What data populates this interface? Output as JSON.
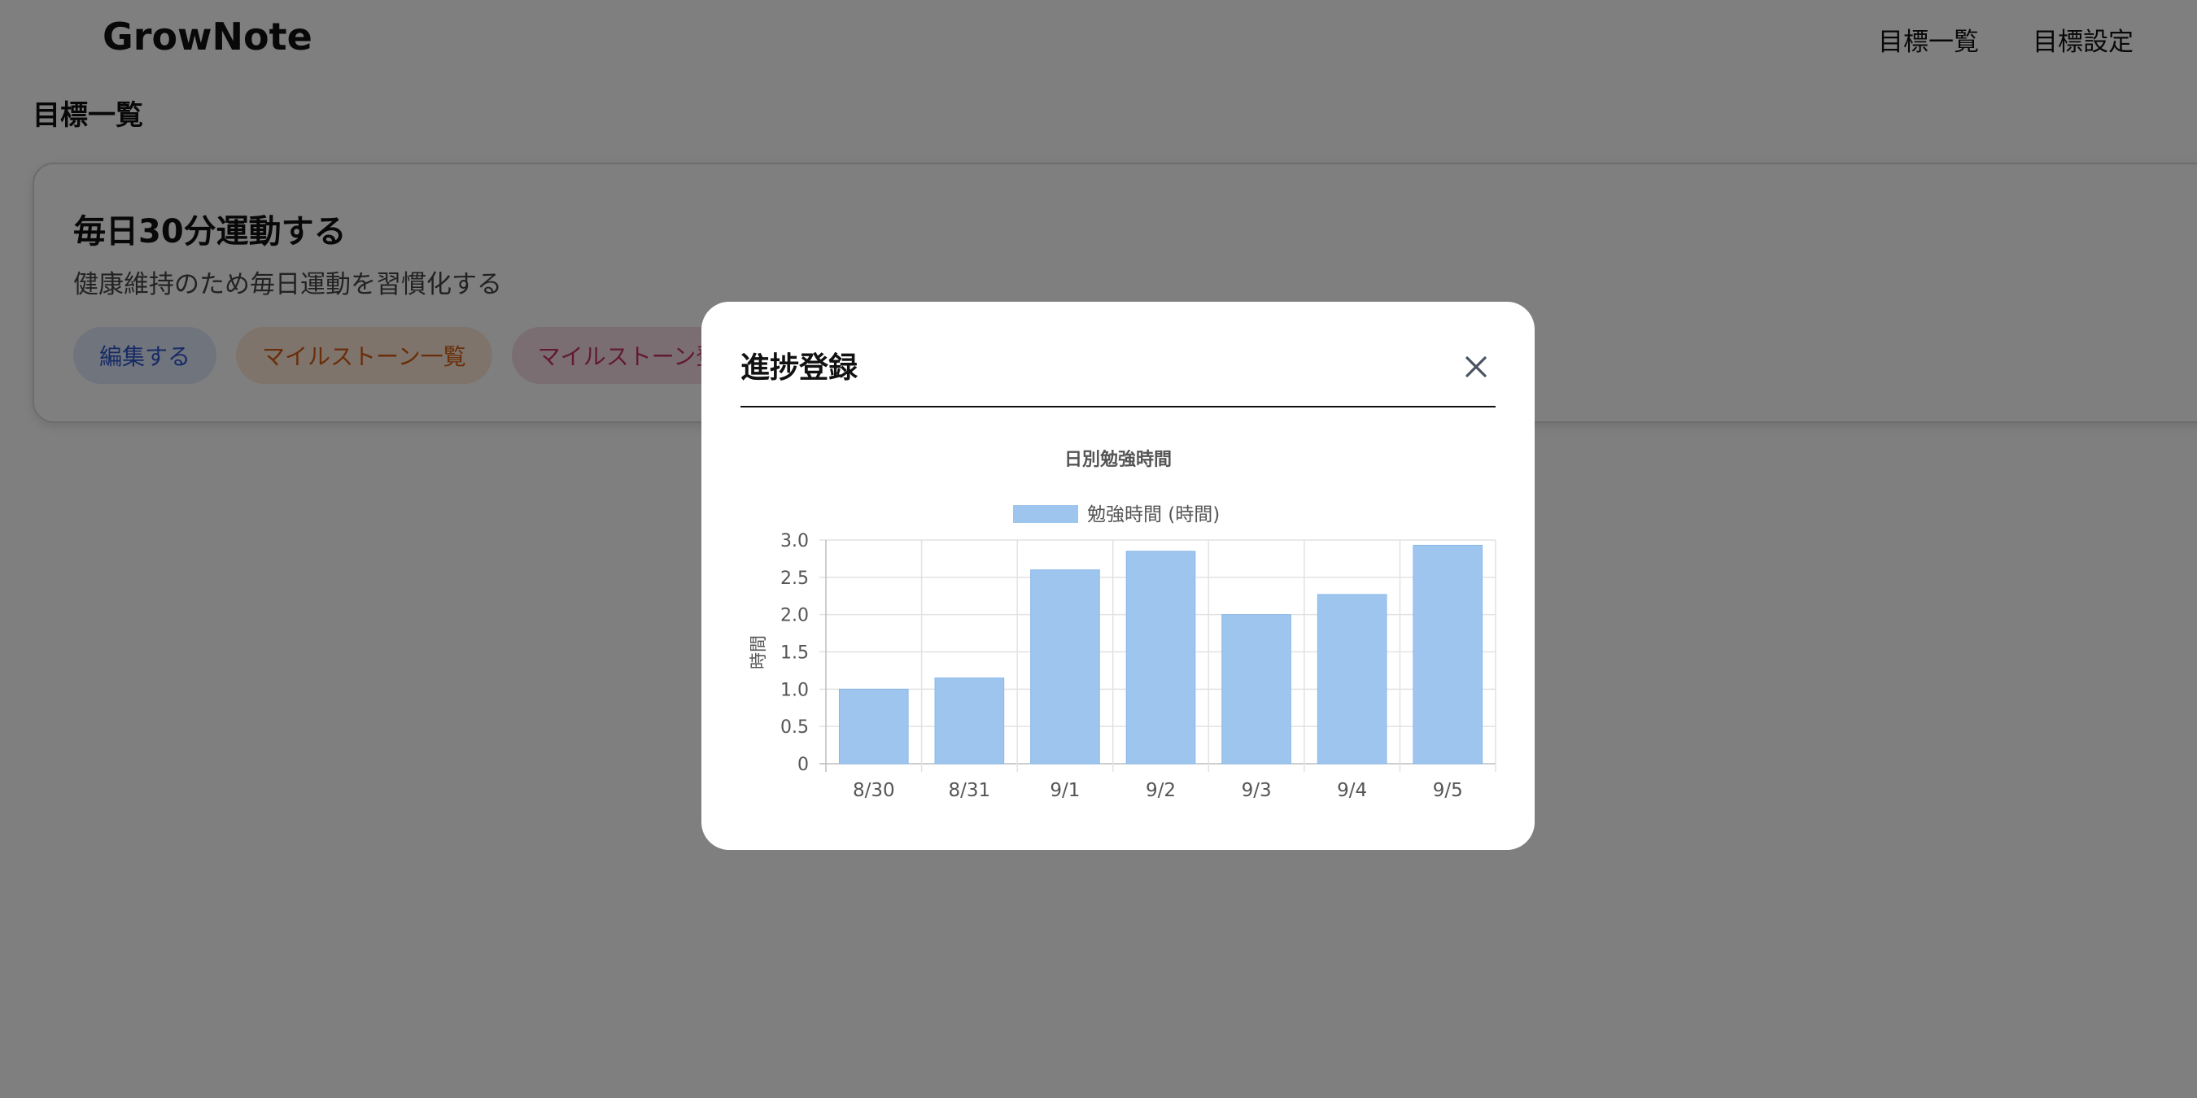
{
  "header": {
    "brand": "GrowNote",
    "nav": [
      "目標一覧",
      "目標設定"
    ]
  },
  "page": {
    "title": "目標一覧"
  },
  "goal_card": {
    "title": "毎日30分運動する",
    "description": "健康維持のため毎日運動を習慣化する",
    "actions": {
      "edit": "編集する",
      "milestone_list": "マイルストーン一覧",
      "milestone_register": "マイルストーン登"
    }
  },
  "modal": {
    "title": "進捗登録",
    "close_icon": "close-icon"
  },
  "colors": {
    "bar": "#9ec5ee",
    "edit_text": "#2f55c8",
    "milestone_list_text": "#d45a12",
    "milestone_register_text": "#c43566"
  },
  "chart_data": {
    "type": "bar",
    "title": "日別勉強時間",
    "categories": [
      "8/30",
      "8/31",
      "9/1",
      "9/2",
      "9/3",
      "9/4",
      "9/5"
    ],
    "series": [
      {
        "name": "勉強時間 (時間)",
        "values": [
          1.0,
          1.15,
          2.6,
          2.85,
          2.0,
          2.27,
          2.93
        ]
      }
    ],
    "xlabel": "",
    "ylabel": "時間",
    "ylim": [
      0,
      3.0
    ],
    "yticks": [
      "0",
      "0.5",
      "1.0",
      "1.5",
      "2.0",
      "2.5",
      "3.0"
    ],
    "grid": true,
    "legend": "top"
  }
}
